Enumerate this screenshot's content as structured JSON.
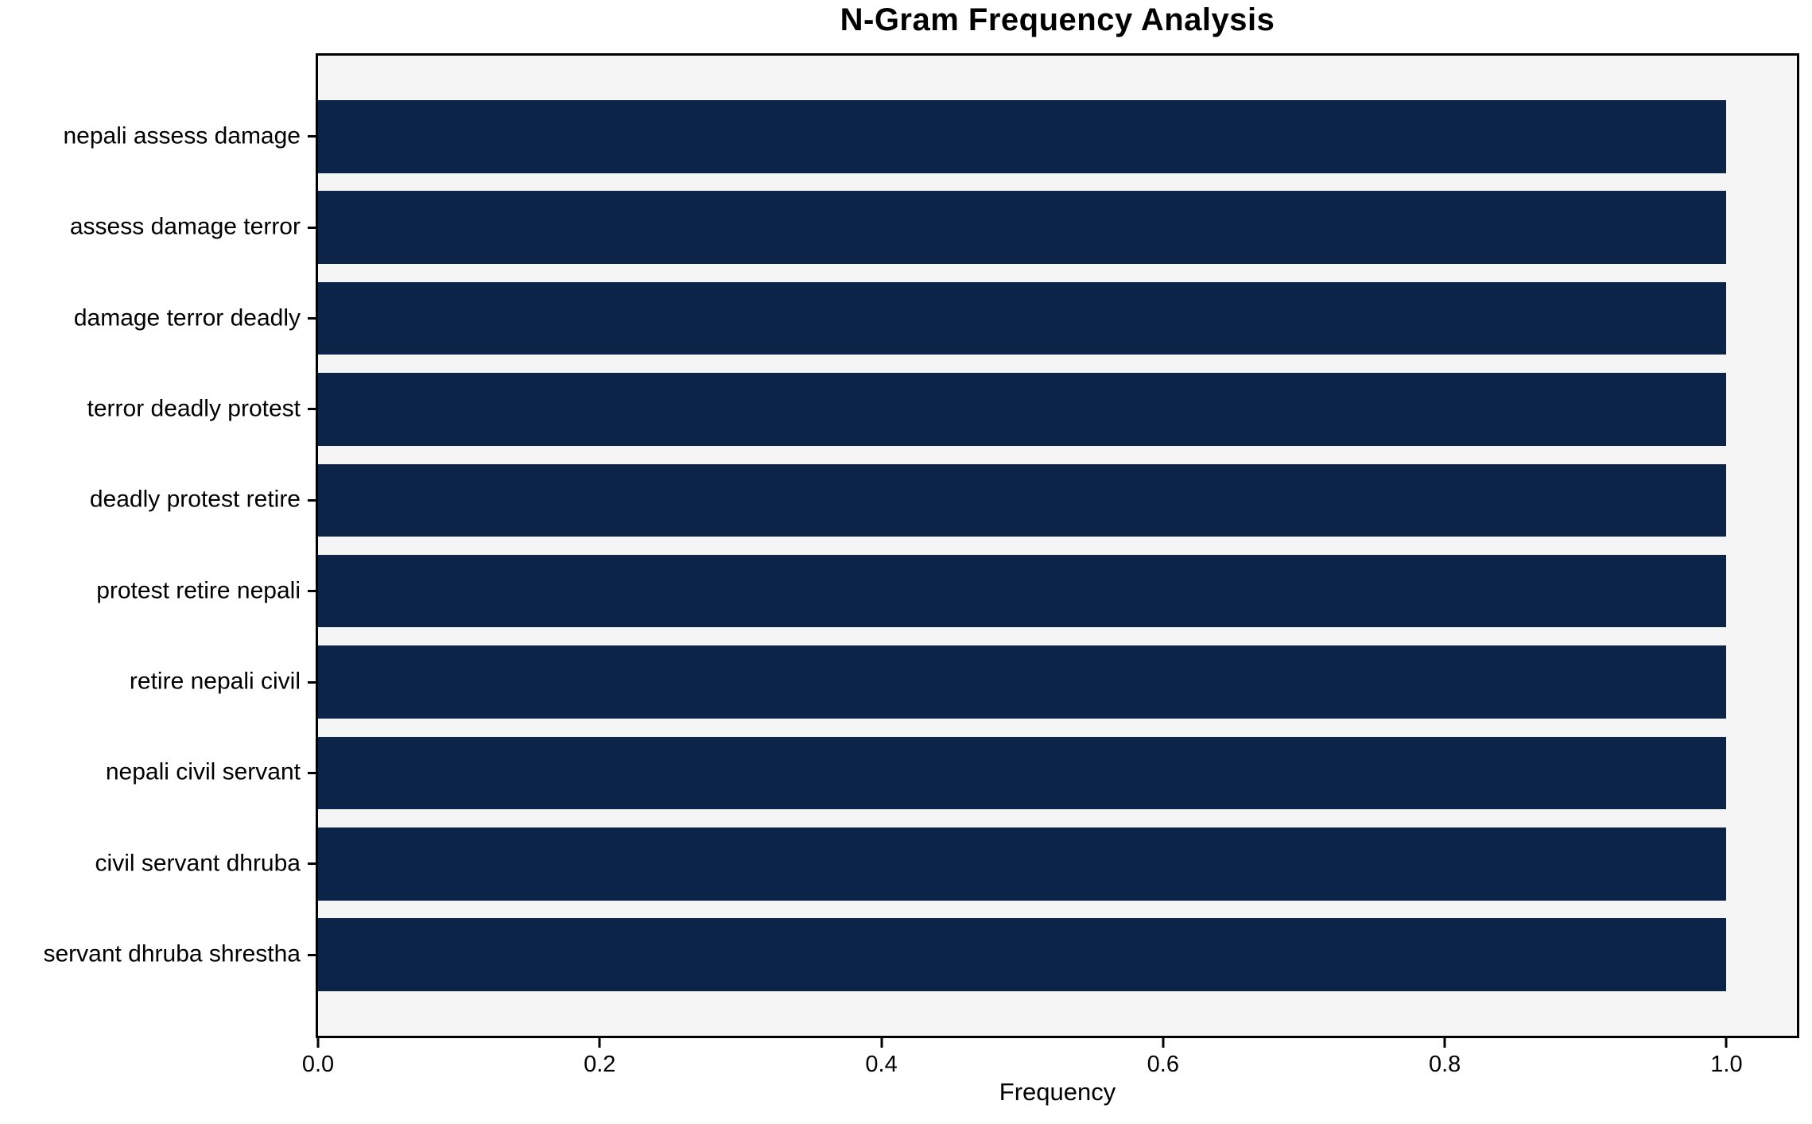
{
  "chart_data": {
    "type": "bar",
    "orientation": "horizontal",
    "title": "N-Gram Frequency Analysis",
    "xlabel": "Frequency",
    "ylabel": "",
    "categories": [
      "nepali assess damage",
      "assess damage terror",
      "damage terror deadly",
      "terror deadly protest",
      "deadly protest retire",
      "protest retire nepali",
      "retire nepali civil",
      "nepali civil servant",
      "civil servant dhruba",
      "servant dhruba shrestha"
    ],
    "values": [
      1.0,
      1.0,
      1.0,
      1.0,
      1.0,
      1.0,
      1.0,
      1.0,
      1.0,
      1.0
    ],
    "xlim": [
      0.0,
      1.05
    ],
    "xticks": [
      "0.0",
      "0.2",
      "0.4",
      "0.6",
      "0.8",
      "1.0"
    ],
    "grid": false,
    "legend": false,
    "colors": {
      "bar": "#0b2447",
      "plot_background": "#f5f5f5",
      "figure_background": "#ffffff",
      "spine": "#000000",
      "text": "#000000"
    }
  }
}
